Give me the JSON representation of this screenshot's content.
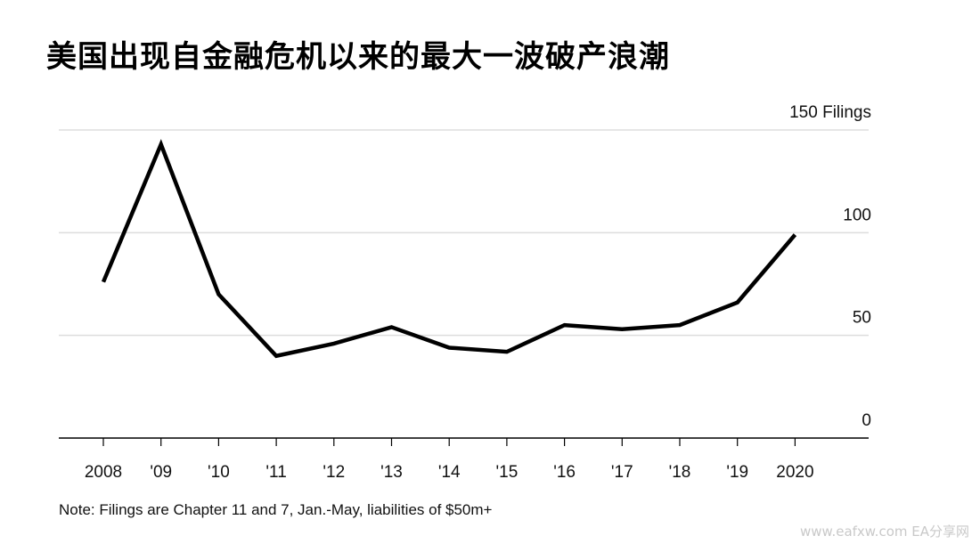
{
  "title": "美国出现自金融危机以来的最大一波破产浪潮",
  "note": "Note: Filings are Chapter 11 and 7, Jan.-May, liabilities of $50m+",
  "watermark": "www.eafxw.com  EA分享网",
  "chart_data": {
    "type": "line",
    "x": [
      "2008",
      "'09",
      "'10",
      "'11",
      "'12",
      "'13",
      "'14",
      "'15",
      "'16",
      "'17",
      "'18",
      "'19",
      "2020"
    ],
    "series": [
      {
        "values": [
          76,
          143,
          70,
          40,
          46,
          54,
          44,
          42,
          55,
          53,
          55,
          66,
          99
        ]
      }
    ],
    "y_ticks": [
      {
        "value": 150,
        "label": "150 Filings"
      },
      {
        "value": 100,
        "label": "100"
      },
      {
        "value": 50,
        "label": "50"
      },
      {
        "value": 0,
        "label": "0"
      }
    ],
    "ylim": [
      0,
      150
    ],
    "grid": true,
    "line_color": "#000000",
    "grid_color": "#dddddd"
  }
}
